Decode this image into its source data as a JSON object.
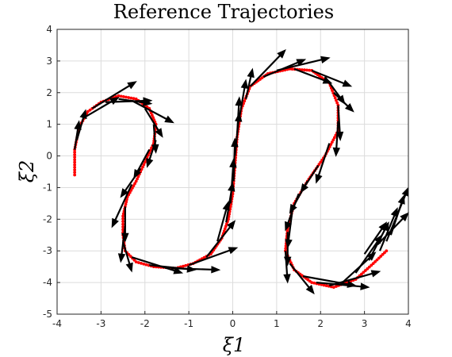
{
  "chart_data": {
    "type": "scatter",
    "title": "Reference Trajectories",
    "xlabel": "ξ1",
    "ylabel": "ξ2",
    "xlim": [
      -4,
      4
    ],
    "ylim": [
      -5,
      4
    ],
    "xticks": [
      "-4",
      "-3",
      "-2",
      "-1",
      "0",
      "1",
      "2",
      "3",
      "4"
    ],
    "yticks": [
      "-5",
      "-4",
      "-3",
      "-2",
      "-1",
      "0",
      "1",
      "2",
      "3",
      "4"
    ],
    "grid": true,
    "colors": {
      "demonstration": "#ff0000",
      "vectors": "#000000"
    },
    "demonstration": [
      [
        -3.6,
        -0.6
      ],
      [
        -3.6,
        0.2
      ],
      [
        -3.5,
        0.9
      ],
      [
        -3.3,
        1.4
      ],
      [
        -3.0,
        1.7
      ],
      [
        -2.6,
        1.9
      ],
      [
        -2.2,
        1.8
      ],
      [
        -1.9,
        1.5
      ],
      [
        -1.75,
        1.0
      ],
      [
        -1.8,
        0.4
      ],
      [
        -2.0,
        -0.2
      ],
      [
        -2.2,
        -0.8
      ],
      [
        -2.4,
        -1.3
      ],
      [
        -2.5,
        -1.9
      ],
      [
        -2.5,
        -2.5
      ],
      [
        -2.45,
        -3.0
      ],
      [
        -2.2,
        -3.35
      ],
      [
        -1.8,
        -3.5
      ],
      [
        -1.3,
        -3.55
      ],
      [
        -0.9,
        -3.4
      ],
      [
        -0.5,
        -3.1
      ],
      [
        -0.25,
        -2.6
      ],
      [
        -0.1,
        -2.0
      ],
      [
        0.0,
        -1.2
      ],
      [
        0.05,
        -0.3
      ],
      [
        0.1,
        0.6
      ],
      [
        0.2,
        1.5
      ],
      [
        0.4,
        2.2
      ],
      [
        0.8,
        2.6
      ],
      [
        1.3,
        2.75
      ],
      [
        1.8,
        2.7
      ],
      [
        2.2,
        2.3
      ],
      [
        2.4,
        1.6
      ],
      [
        2.4,
        0.8
      ],
      [
        2.1,
        0.0
      ],
      [
        1.7,
        -0.8
      ],
      [
        1.4,
        -1.5
      ],
      [
        1.25,
        -2.3
      ],
      [
        1.2,
        -3.0
      ],
      [
        1.4,
        -3.6
      ],
      [
        1.8,
        -4.0
      ],
      [
        2.3,
        -4.15
      ],
      [
        2.8,
        -3.9
      ],
      [
        3.2,
        -3.4
      ],
      [
        3.5,
        -3.0
      ]
    ],
    "vectors": [
      [
        -3.6,
        0.2,
        -3.5,
        1.1
      ],
      [
        -3.55,
        0.5,
        -3.35,
        1.45
      ],
      [
        -3.4,
        1.2,
        -2.6,
        1.85
      ],
      [
        -3.2,
        1.5,
        -2.2,
        2.35
      ],
      [
        -2.9,
        1.7,
        -1.85,
        1.75
      ],
      [
        -2.6,
        1.8,
        -1.85,
        1.65
      ],
      [
        -2.3,
        1.75,
        -1.35,
        1.05
      ],
      [
        -2.0,
        1.5,
        -1.6,
        0.6
      ],
      [
        -1.8,
        1.0,
        -1.75,
        0.1
      ],
      [
        -1.75,
        0.5,
        -1.95,
        -0.35
      ],
      [
        -1.9,
        0.2,
        -2.25,
        -0.7
      ],
      [
        -2.1,
        -0.4,
        -2.55,
        -1.3
      ],
      [
        -2.3,
        -0.9,
        -2.75,
        -2.25
      ],
      [
        -2.45,
        -1.6,
        -2.45,
        -2.7
      ],
      [
        -2.45,
        -2.2,
        -2.55,
        -3.35
      ],
      [
        -2.5,
        -2.7,
        -2.3,
        -3.65
      ],
      [
        -2.3,
        -3.2,
        -1.15,
        -3.7
      ],
      [
        -1.9,
        -3.45,
        -0.85,
        -3.6
      ],
      [
        -1.4,
        -3.55,
        -0.3,
        -3.6
      ],
      [
        -1.0,
        -3.45,
        0.1,
        -2.9
      ],
      [
        -0.6,
        -3.2,
        0.05,
        -2.05
      ],
      [
        -0.35,
        -2.7,
        -0.1,
        -1.45
      ],
      [
        -0.15,
        -2.1,
        0.0,
        -0.85
      ],
      [
        -0.05,
        -1.5,
        0.02,
        -0.1
      ],
      [
        0.02,
        -0.8,
        0.05,
        0.55
      ],
      [
        0.05,
        0.0,
        0.15,
        1.35
      ],
      [
        0.1,
        0.7,
        0.15,
        1.85
      ],
      [
        0.15,
        1.2,
        0.3,
        2.4
      ],
      [
        0.3,
        1.8,
        0.45,
        2.75
      ],
      [
        0.4,
        2.2,
        1.2,
        3.35
      ],
      [
        0.7,
        2.5,
        1.65,
        3.05
      ],
      [
        1.0,
        2.7,
        2.2,
        3.1
      ],
      [
        1.4,
        2.75,
        2.25,
        2.3
      ],
      [
        1.8,
        2.7,
        2.7,
        2.2
      ],
      [
        2.1,
        2.5,
        2.55,
        1.65
      ],
      [
        2.3,
        2.0,
        2.75,
        1.4
      ],
      [
        2.4,
        1.6,
        2.45,
        0.5
      ],
      [
        2.4,
        1.1,
        2.35,
        0.0
      ],
      [
        2.2,
        0.4,
        1.9,
        -0.85
      ],
      [
        1.95,
        -0.3,
        1.55,
        -1.15
      ],
      [
        1.7,
        -0.8,
        1.3,
        -1.8
      ],
      [
        1.5,
        -1.2,
        1.2,
        -2.35
      ],
      [
        1.35,
        -1.8,
        1.25,
        -2.9
      ],
      [
        1.25,
        -2.4,
        1.25,
        -3.45
      ],
      [
        1.2,
        -3.0,
        1.25,
        -4.0
      ],
      [
        1.3,
        -3.4,
        1.85,
        -4.35
      ],
      [
        1.6,
        -3.8,
        2.8,
        -4.1
      ],
      [
        1.9,
        -4.0,
        3.1,
        -4.15
      ],
      [
        2.2,
        -4.1,
        3.35,
        -3.65
      ],
      [
        2.5,
        -4.0,
        3.25,
        -3.05
      ],
      [
        2.8,
        -3.7,
        3.4,
        -2.5
      ],
      [
        3.1,
        -3.3,
        3.55,
        -2.1
      ],
      [
        3.35,
        -3.0,
        3.75,
        -1.65
      ],
      [
        3.5,
        -2.7,
        4.0,
        -1.0
      ],
      [
        3.6,
        -2.5,
        3.9,
        -1.25
      ],
      [
        3.3,
        -2.8,
        4.0,
        -1.8
      ],
      [
        3.0,
        -3.1,
        3.5,
        -2.1
      ]
    ]
  }
}
